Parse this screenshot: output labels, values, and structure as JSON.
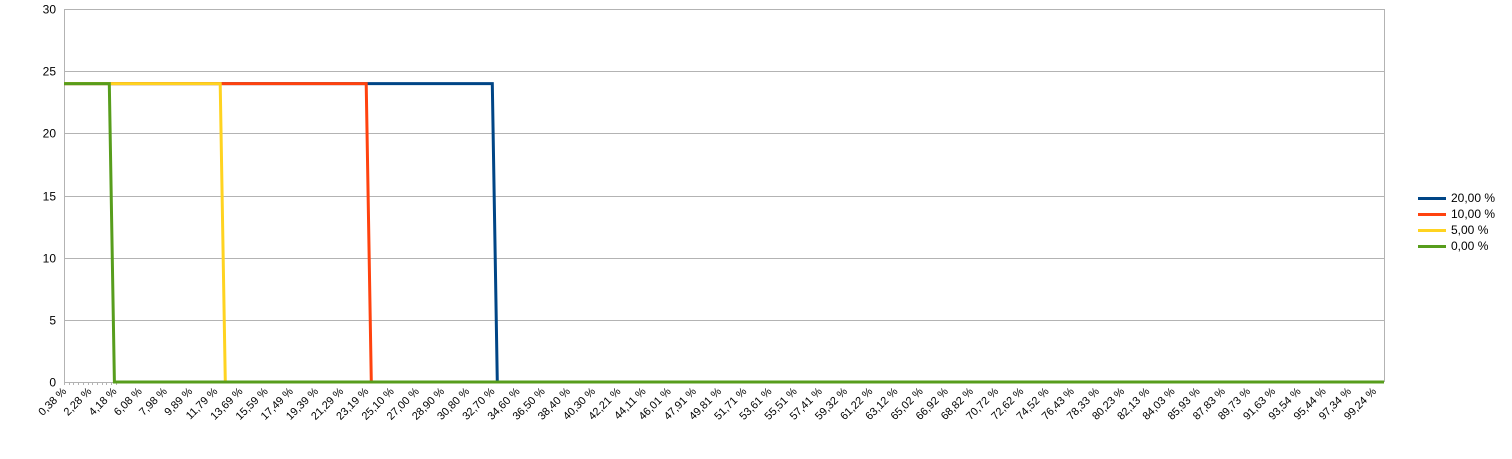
{
  "chart_data": {
    "type": "line",
    "title": "",
    "xlabel": "",
    "ylabel": "",
    "ylim": [
      0,
      30
    ],
    "yticks": [
      0,
      5,
      10,
      15,
      20,
      25,
      30
    ],
    "x_tick_labels": [
      "0,38 %",
      "2,28 %",
      "4,18 %",
      "6,08 %",
      "7,98 %",
      "9,89 %",
      "11,79 %",
      "13,69 %",
      "15,59 %",
      "17,49 %",
      "19,39 %",
      "21,29 %",
      "23,19 %",
      "25,10 %",
      "27,00 %",
      "28,90 %",
      "30,80 %",
      "32,70 %",
      "34,60 %",
      "36,50 %",
      "38,40 %",
      "40,30 %",
      "42,21 %",
      "44,11 %",
      "46,01 %",
      "47,91 %",
      "49,81 %",
      "51,71 %",
      "53,61 %",
      "55,51 %",
      "57,41 %",
      "59,32 %",
      "61,22 %",
      "63,12 %",
      "65,02 %",
      "66,92 %",
      "68,82 %",
      "70,72 %",
      "72,62 %",
      "74,52 %",
      "76,43 %",
      "78,33 %",
      "80,23 %",
      "82,13 %",
      "84,03 %",
      "85,93 %",
      "87,83 %",
      "89,73 %",
      "91,63 %",
      "93,54 %",
      "95,44 %",
      "97,34 %",
      "99,24 %"
    ],
    "grid": true,
    "legend_position": "right",
    "series": [
      {
        "name": "20,00 %",
        "color": "#004586",
        "points": [
          [
            0.38,
            24
          ],
          [
            32.7,
            24
          ],
          [
            33.08,
            0
          ],
          [
            100,
            0
          ]
        ]
      },
      {
        "name": "10,00 %",
        "color": "#ff420e",
        "points": [
          [
            0.38,
            24
          ],
          [
            23.19,
            24
          ],
          [
            23.57,
            0
          ],
          [
            100,
            0
          ]
        ]
      },
      {
        "name": "5,00 %",
        "color": "#ffd320",
        "points": [
          [
            0.38,
            24
          ],
          [
            12.17,
            24
          ],
          [
            12.55,
            0
          ],
          [
            100,
            0
          ]
        ]
      },
      {
        "name": "0,00 %",
        "color": "#579d1c",
        "points": [
          [
            0.38,
            24
          ],
          [
            3.8,
            24
          ],
          [
            4.18,
            0
          ],
          [
            100,
            0
          ]
        ]
      }
    ]
  },
  "legend": {
    "items": [
      {
        "label": "20,00 %",
        "color": "#004586"
      },
      {
        "label": "10,00 %",
        "color": "#ff420e"
      },
      {
        "label": "5,00 %",
        "color": "#ffd320"
      },
      {
        "label": "0,00 %",
        "color": "#579d1c"
      }
    ]
  }
}
